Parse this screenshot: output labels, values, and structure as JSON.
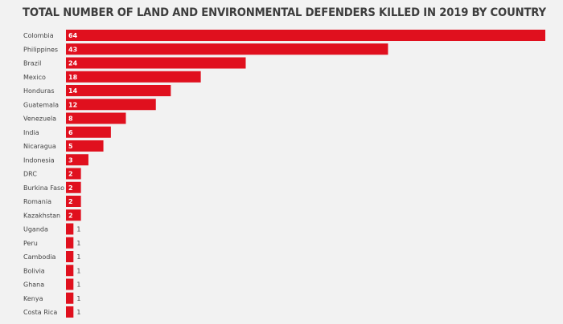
{
  "chart_data": {
    "type": "bar",
    "orientation": "horizontal",
    "title": "TOTAL NUMBER OF LAND AND ENVIRONMENTAL DEFENDERS KILLED IN 2019 BY COUNTRY",
    "xlabel": "",
    "ylabel": "",
    "grid": false,
    "legend": "none",
    "bar_color": "#e0101e",
    "xlim": [
      0,
      64
    ],
    "categories": [
      "Colombia",
      "Philippines",
      "Brazil",
      "Mexico",
      "Honduras",
      "Guatemala",
      "Venezuela",
      "India",
      "Nicaragua",
      "Indonesia",
      "DRC",
      "Burkina Faso",
      "Romania",
      "Kazakhstan",
      "Uganda",
      "Peru",
      "Cambodia",
      "Bolivia",
      "Ghana",
      "Kenya",
      "Costa Rica"
    ],
    "values": [
      64,
      43,
      24,
      18,
      14,
      12,
      8,
      6,
      5,
      3,
      2,
      2,
      2,
      2,
      1,
      1,
      1,
      1,
      1,
      1,
      1
    ]
  }
}
